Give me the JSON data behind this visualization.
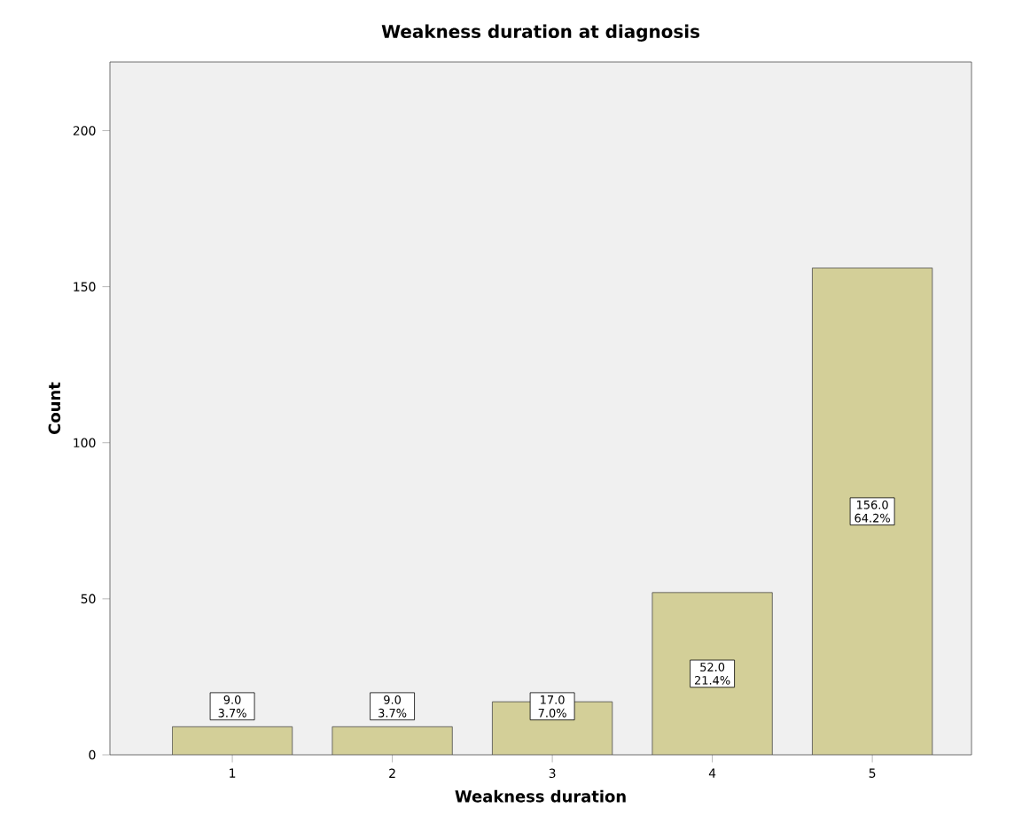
{
  "chart_data": {
    "type": "bar",
    "title": "Weakness duration at diagnosis",
    "xlabel": "Weakness duration",
    "ylabel": "Count",
    "categories": [
      "1",
      "2",
      "3",
      "4",
      "5"
    ],
    "values": [
      9,
      9,
      17,
      52,
      156
    ],
    "value_labels": [
      "9.0 3.7%",
      "9.0 3.7%",
      "17.0 7.0%",
      "52.0 21.4%",
      "156.0 64.2%"
    ],
    "color": "#d3cf98",
    "ylim": [
      0,
      222
    ],
    "yticks": [
      0,
      50,
      100,
      150,
      200
    ],
    "grid": false
  }
}
